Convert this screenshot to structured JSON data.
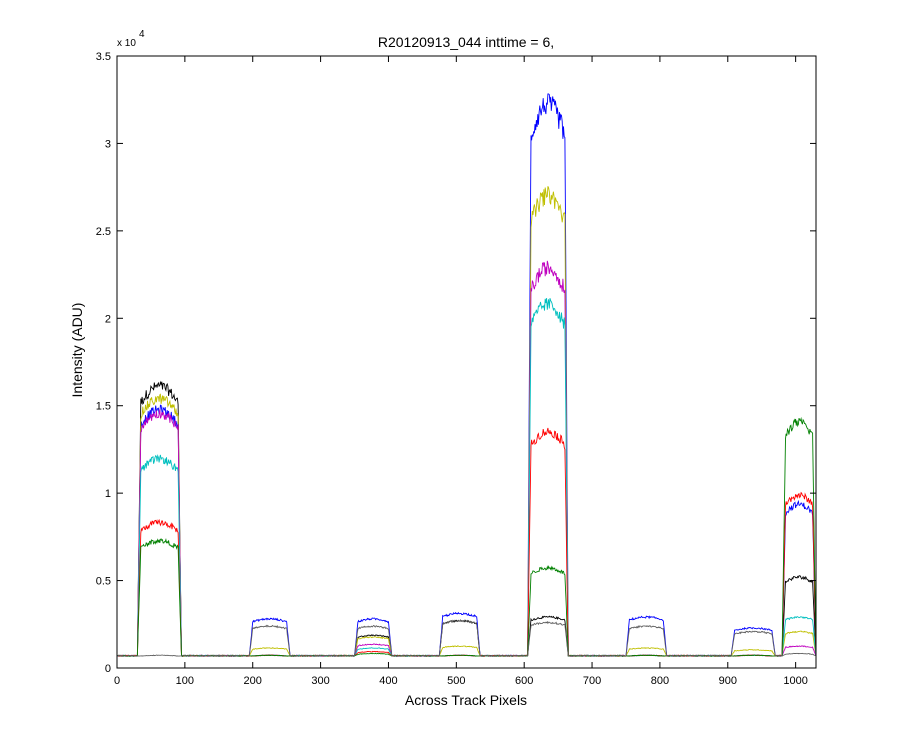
{
  "chart_data": {
    "type": "line",
    "title": "R20120913_044 inttime = 6,",
    "xlabel": "Across Track Pixels",
    "ylabel": "Intensity (ADU)",
    "y_exponent_base": "x 10",
    "y_exponent_power": "4",
    "xlim": [
      0,
      1030
    ],
    "ylim": [
      0,
      35000
    ],
    "xticks": [
      0,
      100,
      200,
      300,
      400,
      500,
      600,
      700,
      800,
      900,
      1000
    ],
    "yticks": [
      0,
      5000,
      10000,
      15000,
      20000,
      25000,
      30000,
      35000
    ],
    "ytick_labels": [
      "0",
      "0.5",
      "1",
      "1.5",
      "2",
      "2.5",
      "3",
      "3.5"
    ],
    "grid": false,
    "baseline": 700,
    "segments": [
      {
        "x_start": 30,
        "x_end": 95
      },
      {
        "x_start": 195,
        "x_end": 255
      },
      {
        "x_start": 350,
        "x_end": 405
      },
      {
        "x_start": 475,
        "x_end": 535
      },
      {
        "x_start": 605,
        "x_end": 665
      },
      {
        "x_start": 750,
        "x_end": 810
      },
      {
        "x_start": 905,
        "x_end": 970
      },
      {
        "x_start": 980,
        "x_end": 1030
      }
    ],
    "series": [
      {
        "color": "#000000",
        "levels": [
          15500,
          700,
          1800,
          2600,
          2800,
          700,
          700,
          5000
        ]
      },
      {
        "color": "#0000ff",
        "levels": [
          14200,
          2700,
          2700,
          3000,
          31000,
          2800,
          2200,
          9000
        ]
      },
      {
        "color": "#bfbf00",
        "levels": [
          14800,
          1100,
          1700,
          1200,
          26000,
          1100,
          1000,
          2000
        ]
      },
      {
        "color": "#bf00bf",
        "levels": [
          14000,
          700,
          1300,
          700,
          22000,
          700,
          700,
          1200
        ]
      },
      {
        "color": "#00bfbf",
        "levels": [
          11500,
          700,
          1100,
          700,
          20000,
          700,
          700,
          2800
        ]
      },
      {
        "color": "#ff0000",
        "levels": [
          8000,
          700,
          900,
          700,
          13000,
          700,
          700,
          9500
        ]
      },
      {
        "color": "#008000",
        "levels": [
          7000,
          700,
          800,
          700,
          5500,
          700,
          700,
          13500
        ]
      },
      {
        "color": "#606060",
        "levels": [
          700,
          2300,
          2300,
          2600,
          2500,
          2300,
          2000,
          800
        ]
      }
    ]
  }
}
